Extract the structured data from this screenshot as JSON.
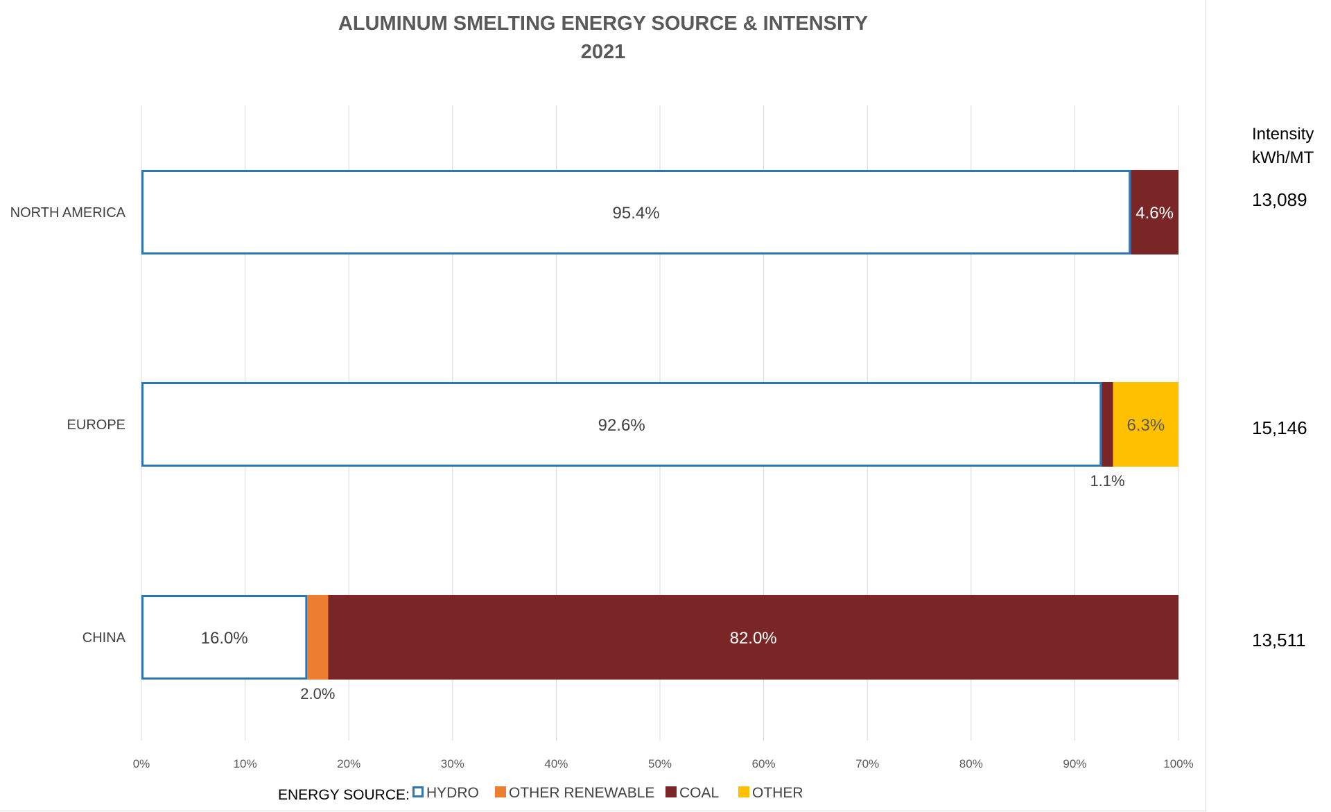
{
  "chart_data": {
    "type": "bar",
    "orientation": "horizontal",
    "stacked": "percent",
    "title": "ALUMINUM SMELTING ENERGY SOURCE & INTENSITY",
    "subtitle": "2021",
    "categories": [
      "NORTH AMERICA",
      "EUROPE",
      "CHINA"
    ],
    "series": [
      {
        "name": "HYDRO",
        "values": [
          95.4,
          92.6,
          16.0
        ],
        "labels": [
          "95.4%",
          "92.6%",
          "16.0%"
        ],
        "color": "#ffffff",
        "stroke": "#2e75b6",
        "label_color": "#404040"
      },
      {
        "name": "OTHER RENEWABLE",
        "values": [
          0,
          0,
          2.0
        ],
        "labels": [
          "",
          "",
          "2.0%"
        ],
        "color": "#ed7d31",
        "label_color": "#404040"
      },
      {
        "name": "COAL",
        "values": [
          4.6,
          1.1,
          82.0
        ],
        "labels": [
          "4.6%",
          "1.1%",
          "82.0%"
        ],
        "color": "#7b2626",
        "label_color": "#ffffff"
      },
      {
        "name": "OTHER",
        "values": [
          0,
          6.3,
          0
        ],
        "labels": [
          "",
          "6.3%",
          ""
        ],
        "color": "#ffc000",
        "label_color": "#595959"
      }
    ],
    "xlim": [
      0,
      100
    ],
    "x_ticks": [
      "0%",
      "10%",
      "20%",
      "30%",
      "40%",
      "50%",
      "60%",
      "70%",
      "80%",
      "90%",
      "100%"
    ],
    "grid": true,
    "legend": {
      "title": "ENERGY SOURCE:",
      "position": "bottom"
    },
    "intensity": {
      "header_line1": "Intensity",
      "header_line2": "kWh/MT",
      "values": [
        "13,089",
        "15,146",
        "13,511"
      ]
    }
  }
}
